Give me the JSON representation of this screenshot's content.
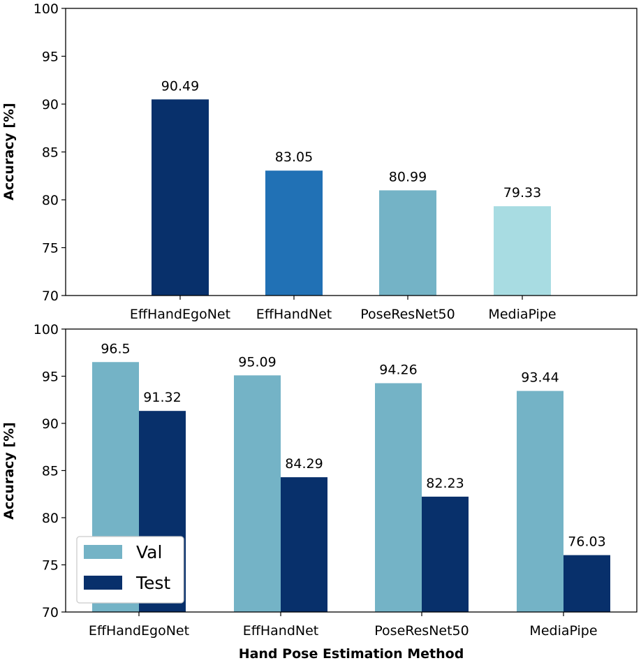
{
  "chart_data": [
    {
      "type": "bar",
      "categories": [
        "EffHandEgoNet",
        "EffHandNet",
        "PoseResNet50",
        "MediaPipe"
      ],
      "values": [
        90.49,
        83.05,
        80.99,
        79.33
      ],
      "value_labels": [
        "90.49",
        "83.05",
        "80.99",
        "79.33"
      ],
      "colors": [
        "#08306b",
        "#2171b5",
        "#74b3c6",
        "#a8dce2"
      ],
      "xlabel": "",
      "ylabel": "Accuracy [%]",
      "ylim": [
        70,
        100
      ],
      "yticks": [
        "70",
        "75",
        "80",
        "85",
        "90",
        "95",
        "100"
      ],
      "grid": false
    },
    {
      "type": "bar",
      "categories": [
        "EffHandEgoNet",
        "EffHandNet",
        "PoseResNet50",
        "MediaPipe"
      ],
      "series": [
        {
          "name": "Val",
          "color": "#74b3c6",
          "values": [
            96.5,
            95.09,
            94.26,
            93.44
          ],
          "value_labels": [
            "96.5",
            "95.09",
            "94.26",
            "93.44"
          ]
        },
        {
          "name": "Test",
          "color": "#08306b",
          "values": [
            91.32,
            84.29,
            82.23,
            76.03
          ],
          "value_labels": [
            "91.32",
            "84.29",
            "82.23",
            "76.03"
          ]
        }
      ],
      "xlabel": "Hand Pose Estimation Method",
      "ylabel": "Accuracy [%]",
      "ylim": [
        70,
        100
      ],
      "yticks": [
        "70",
        "75",
        "80",
        "85",
        "90",
        "95",
        "100"
      ],
      "legend": "bottom-left",
      "grid": false
    }
  ]
}
